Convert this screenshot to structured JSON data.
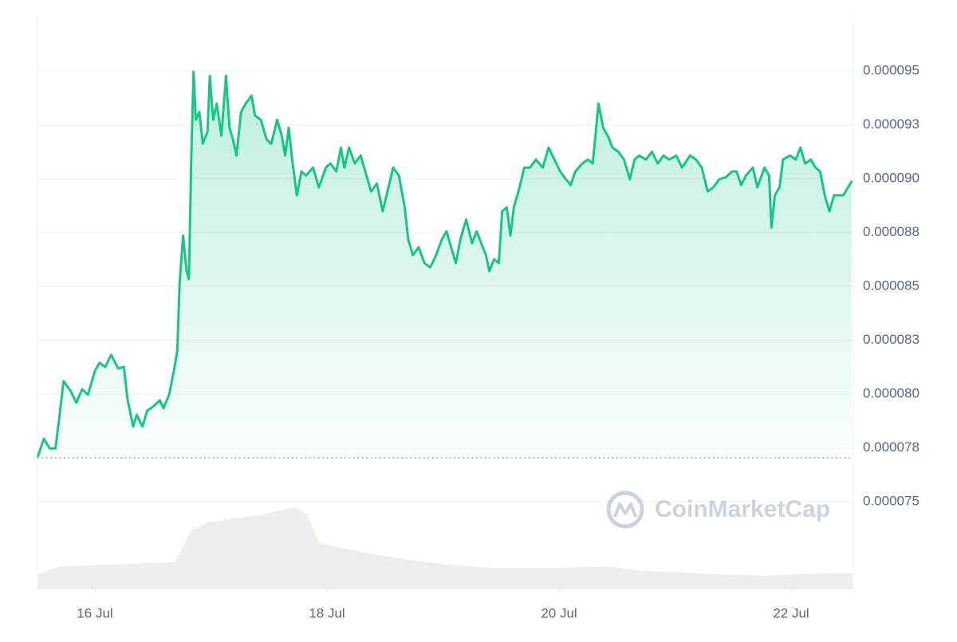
{
  "chart_data": {
    "type": "area",
    "watermark": "CoinMarketCap",
    "series": [
      {
        "color": "#16c784",
        "x": [
          15.51,
          15.56,
          15.61,
          15.66,
          15.7,
          15.73,
          15.79,
          15.84,
          15.89,
          15.94,
          16.0,
          16.04,
          16.09,
          16.14,
          16.2,
          16.25,
          16.28,
          16.33,
          16.36,
          16.41,
          16.45,
          16.5,
          16.56,
          16.59,
          16.64,
          16.68,
          16.71,
          16.73,
          16.76,
          16.79,
          16.81,
          16.83,
          16.85,
          16.87,
          16.9,
          16.93,
          16.97,
          16.99,
          17.02,
          17.05,
          17.09,
          17.13,
          17.16,
          17.19,
          17.22,
          17.26,
          17.3,
          17.35,
          17.38,
          17.43,
          17.48,
          17.52,
          17.57,
          17.61,
          17.64,
          17.67,
          17.7,
          17.74,
          17.78,
          17.82,
          17.88,
          17.93,
          17.99,
          18.03,
          18.08,
          18.12,
          18.15,
          18.19,
          18.24,
          18.29,
          18.34,
          18.38,
          18.43,
          18.48,
          18.53,
          18.57,
          18.62,
          18.67,
          18.7,
          18.74,
          18.79,
          18.84,
          18.89,
          18.94,
          18.99,
          19.03,
          19.07,
          19.11,
          19.15,
          19.2,
          19.25,
          19.29,
          19.33,
          19.37,
          19.4,
          19.44,
          19.48,
          19.51,
          19.55,
          19.58,
          19.61,
          19.66,
          19.7,
          19.75,
          19.8,
          19.86,
          19.91,
          19.96,
          20.01,
          20.06,
          20.1,
          20.14,
          20.2,
          20.25,
          20.29,
          20.34,
          20.38,
          20.42,
          20.46,
          20.51,
          20.56,
          20.61,
          20.65,
          20.69,
          20.75,
          20.8,
          20.85,
          20.9,
          20.95,
          21.01,
          21.06,
          21.13,
          21.18,
          21.23,
          21.28,
          21.33,
          21.38,
          21.44,
          21.49,
          21.53,
          21.57,
          21.61,
          21.67,
          21.71,
          21.77,
          21.81,
          21.83,
          21.86,
          21.9,
          21.93,
          21.99,
          22.04,
          22.08,
          22.12,
          22.17,
          22.21,
          22.25,
          22.29,
          22.33,
          22.37,
          22.41,
          22.45,
          22.49,
          22.52
        ],
        "values": [
          7.712e-05,
          7.793e-05,
          7.748e-05,
          7.748e-05,
          7.923e-05,
          8.06e-05,
          8.015e-05,
          7.96e-05,
          8.023e-05,
          7.997e-05,
          8.108e-05,
          8.145e-05,
          8.126e-05,
          8.182e-05,
          8.119e-05,
          8.126e-05,
          7.978e-05,
          7.849e-05,
          7.904e-05,
          7.849e-05,
          7.923e-05,
          7.941e-05,
          7.971e-05,
          7.934e-05,
          7.997e-05,
          8.108e-05,
          8.2e-05,
          8.515e-05,
          8.737e-05,
          8.571e-05,
          8.534e-05,
          9.089e-05,
          9.497e-05,
          9.274e-05,
          9.311e-05,
          9.163e-05,
          9.219e-05,
          9.478e-05,
          9.274e-05,
          9.349e-05,
          9.2e-05,
          9.478e-05,
          9.237e-05,
          9.182e-05,
          9.108e-05,
          9.311e-05,
          9.349e-05,
          9.386e-05,
          9.293e-05,
          9.274e-05,
          9.182e-05,
          9.163e-05,
          9.274e-05,
          9.2e-05,
          9.108e-05,
          9.237e-05,
          9.089e-05,
          8.923e-05,
          9.034e-05,
          9.015e-05,
          9.052e-05,
          8.96e-05,
          9.052e-05,
          9.071e-05,
          9.034e-05,
          9.145e-05,
          9.052e-05,
          9.145e-05,
          9.071e-05,
          9.108e-05,
          9.015e-05,
          8.941e-05,
          8.978e-05,
          8.849e-05,
          8.96e-05,
          9.052e-05,
          9.015e-05,
          8.867e-05,
          8.719e-05,
          8.645e-05,
          8.682e-05,
          8.608e-05,
          8.589e-05,
          8.645e-05,
          8.719e-05,
          8.756e-05,
          8.682e-05,
          8.608e-05,
          8.719e-05,
          8.811e-05,
          8.7e-05,
          8.756e-05,
          8.7e-05,
          8.645e-05,
          8.571e-05,
          8.626e-05,
          8.608e-05,
          8.849e-05,
          8.867e-05,
          8.737e-05,
          8.867e-05,
          8.96e-05,
          9.052e-05,
          9.052e-05,
          9.089e-05,
          9.052e-05,
          9.145e-05,
          9.089e-05,
          9.034e-05,
          8.997e-05,
          8.971e-05,
          9.034e-05,
          9.071e-05,
          9.089e-05,
          9.071e-05,
          9.349e-05,
          9.237e-05,
          9.2e-05,
          9.145e-05,
          9.126e-05,
          9.089e-05,
          8.997e-05,
          9.089e-05,
          9.108e-05,
          9.089e-05,
          9.126e-05,
          9.071e-05,
          9.108e-05,
          9.089e-05,
          9.108e-05,
          9.052e-05,
          9.108e-05,
          9.089e-05,
          9.052e-05,
          8.941e-05,
          8.96e-05,
          8.997e-05,
          9.008e-05,
          9.034e-05,
          9.034e-05,
          8.971e-05,
          9.015e-05,
          9.052e-05,
          8.96e-05,
          9.052e-05,
          9.015e-05,
          8.774e-05,
          8.923e-05,
          8.96e-05,
          9.089e-05,
          9.108e-05,
          9.089e-05,
          9.145e-05,
          9.071e-05,
          9.089e-05,
          9.052e-05,
          9.034e-05,
          8.923e-05,
          8.849e-05,
          8.923e-05,
          8.923e-05,
          8.923e-05,
          8.96e-05,
          8.986e-05
        ]
      }
    ],
    "reference_line": 7.704e-05,
    "xlim": [
      15.505,
      22.536
    ],
    "xticks": [
      {
        "value": 16,
        "label": "16 Jul"
      },
      {
        "value": 18,
        "label": "18 Jul"
      },
      {
        "value": 20,
        "label": "20 Jul"
      },
      {
        "value": 22,
        "label": "22 Jul"
      }
    ],
    "ylim": [
      7.097e-05,
      9.756e-05
    ],
    "yticks": [
      {
        "value": 9.5e-05,
        "label": "0.000095"
      },
      {
        "value": 9.25e-05,
        "label": "0.000093"
      },
      {
        "value": 9e-05,
        "label": "0.000090"
      },
      {
        "value": 8.75e-05,
        "label": "0.000088"
      },
      {
        "value": 8.5e-05,
        "label": "0.000085"
      },
      {
        "value": 8.25e-05,
        "label": "0.000083"
      },
      {
        "value": 8e-05,
        "label": "0.000080"
      },
      {
        "value": 7.75e-05,
        "label": "0.000078"
      },
      {
        "value": 7.5e-05,
        "label": "0.000075"
      }
    ],
    "grid": true,
    "volume": {
      "color": "#eceff2",
      "x": [
        15.51,
        15.7,
        16.69,
        16.83,
        16.97,
        17.45,
        17.72,
        17.83,
        17.93,
        18.14,
        18.62,
        19.03,
        19.44,
        19.99,
        20.41,
        20.68,
        21.37,
        21.78,
        22.05,
        22.53
      ],
      "values": [
        18,
        28,
        33,
        73,
        83,
        93,
        102,
        93,
        58,
        50,
        38,
        30,
        26,
        26,
        28,
        23,
        18,
        16,
        18,
        20
      ],
      "ylim": [
        0,
        120
      ]
    }
  }
}
